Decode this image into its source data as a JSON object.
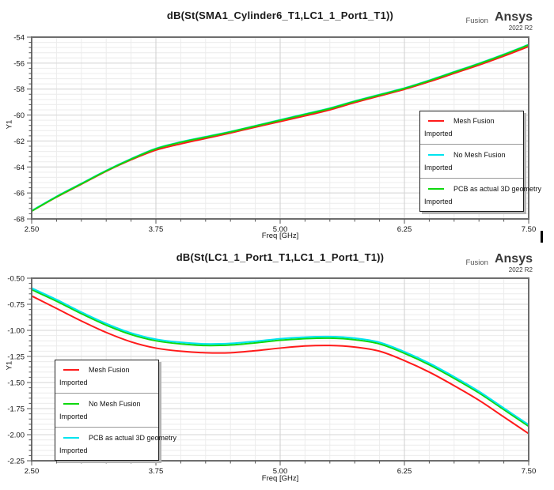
{
  "branding": {
    "fusion": "Fusion",
    "ansys": "Ansys",
    "version": "2022 R2"
  },
  "chart_data": [
    {
      "type": "line",
      "title": "dB(St(SMA1_Cylinder6_T1,LC1_1_Port1_T1))",
      "xlabel": "Freq [GHz]",
      "ylabel": "Y1",
      "xlim": [
        2.5,
        7.5
      ],
      "ylim": [
        -68,
        -54
      ],
      "xtick_vals": [
        2.5,
        3.75,
        5.0,
        6.25,
        7.5
      ],
      "xtick_labels": [
        "2.50",
        "3.75",
        "5.00",
        "6.25",
        "7.50"
      ],
      "ytick_vals": [
        -54,
        -56,
        -58,
        -60,
        -62,
        -64,
        -66,
        -68
      ],
      "ytick_labels": [
        "-54",
        "-56",
        "-58",
        "-60",
        "-62",
        "-64",
        "-66",
        "-68"
      ],
      "x_minor_step": 0.25,
      "y_minor_step": 0.4,
      "grid": true,
      "legend_position": "right-middle",
      "x": [
        2.5,
        2.75,
        3.0,
        3.25,
        3.5,
        3.75,
        4.0,
        4.25,
        4.5,
        4.75,
        5.0,
        5.25,
        5.5,
        5.75,
        6.0,
        6.25,
        6.5,
        6.75,
        7.0,
        7.25,
        7.5
      ],
      "series": [
        {
          "name": "Mesh Fusion",
          "sub": "Imported",
          "color": "#ff1a1a",
          "values": [
            -67.4,
            -66.32,
            -65.33,
            -64.33,
            -63.45,
            -62.7,
            -62.22,
            -61.8,
            -61.38,
            -60.93,
            -60.5,
            -60.06,
            -59.6,
            -59.04,
            -58.53,
            -58.02,
            -57.43,
            -56.79,
            -56.15,
            -55.46,
            -54.72
          ]
        },
        {
          "name": "No Mesh Fusion",
          "sub": "Imported",
          "color": "#00e4ef",
          "values": [
            -67.37,
            -66.27,
            -65.27,
            -64.27,
            -63.37,
            -62.57,
            -62.07,
            -61.67,
            -61.27,
            -60.82,
            -60.37,
            -59.92,
            -59.47,
            -58.92,
            -58.42,
            -57.92,
            -57.32,
            -56.67,
            -56.02,
            -55.32,
            -54.57
          ]
        },
        {
          "name": "PCB as actual 3D geometry",
          "sub": "Imported",
          "color": "#0ed80e",
          "values": [
            -67.4,
            -66.3,
            -65.3,
            -64.3,
            -63.4,
            -62.6,
            -62.1,
            -61.7,
            -61.3,
            -60.85,
            -60.4,
            -59.95,
            -59.5,
            -58.95,
            -58.45,
            -57.95,
            -57.35,
            -56.7,
            -56.05,
            -55.35,
            -54.6
          ]
        }
      ]
    },
    {
      "type": "line",
      "title": "dB(St(LC1_1_Port1_T1,LC1_1_Port1_T1))",
      "xlabel": "Freq [GHz]",
      "ylabel": "Y1",
      "xlim": [
        2.5,
        7.5
      ],
      "ylim": [
        -2.25,
        -0.5
      ],
      "xtick_vals": [
        2.5,
        3.75,
        5.0,
        6.25,
        7.5
      ],
      "xtick_labels": [
        "2.50",
        "3.75",
        "5.00",
        "6.25",
        "7.50"
      ],
      "ytick_vals": [
        -0.5,
        -0.75,
        -1.0,
        -1.25,
        -1.5,
        -1.75,
        -2.0,
        -2.25
      ],
      "ytick_labels": [
        "-0.50",
        "-0.75",
        "-1.00",
        "-1.25",
        "-1.50",
        "-1.75",
        "-2.00",
        "-2.25"
      ],
      "x_minor_step": 0.25,
      "y_minor_step": 0.05,
      "grid": true,
      "legend_position": "left-lower",
      "x": [
        2.5,
        2.75,
        3.0,
        3.25,
        3.5,
        3.75,
        4.0,
        4.25,
        4.5,
        4.75,
        5.0,
        5.25,
        5.5,
        5.75,
        6.0,
        6.25,
        6.5,
        6.75,
        7.0,
        7.25,
        7.5
      ],
      "series": [
        {
          "name": "Mesh Fusion",
          "sub": "Imported",
          "color": "#ff1a1a",
          "values": [
            -0.67,
            -0.79,
            -0.91,
            -1.02,
            -1.11,
            -1.17,
            -1.2,
            -1.215,
            -1.215,
            -1.195,
            -1.17,
            -1.15,
            -1.145,
            -1.16,
            -1.2,
            -1.29,
            -1.4,
            -1.53,
            -1.67,
            -1.83,
            -1.99
          ]
        },
        {
          "name": "No Mesh Fusion",
          "sub": "Imported",
          "color": "#0ed80e",
          "values": [
            -0.61,
            -0.72,
            -0.84,
            -0.95,
            -1.04,
            -1.1,
            -1.13,
            -1.145,
            -1.14,
            -1.12,
            -1.095,
            -1.08,
            -1.075,
            -1.09,
            -1.13,
            -1.22,
            -1.33,
            -1.46,
            -1.6,
            -1.76,
            -1.92
          ]
        },
        {
          "name": "PCB as actual 3D geometry",
          "sub": "Imported",
          "color": "#00e4ef",
          "values": [
            -0.595,
            -0.705,
            -0.825,
            -0.935,
            -1.025,
            -1.085,
            -1.115,
            -1.13,
            -1.125,
            -1.105,
            -1.08,
            -1.065,
            -1.06,
            -1.075,
            -1.115,
            -1.205,
            -1.315,
            -1.445,
            -1.585,
            -1.745,
            -1.905
          ]
        }
      ]
    }
  ]
}
